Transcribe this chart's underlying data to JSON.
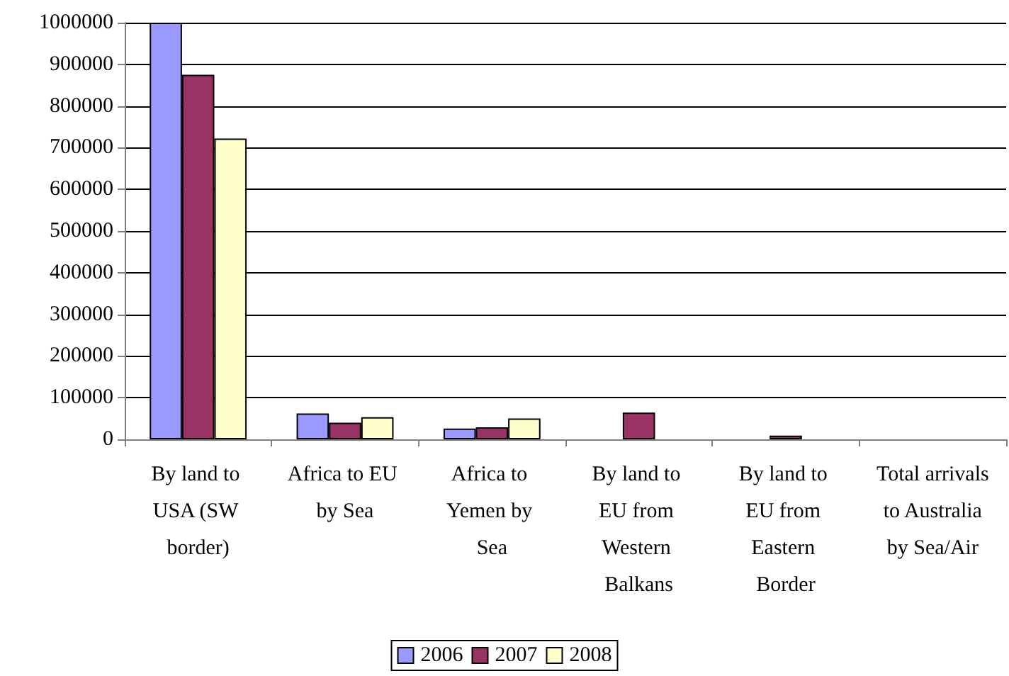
{
  "chart_data": {
    "type": "bar",
    "categories": [
      "By land to USA (SW border)",
      "Africa to EU by Sea",
      "Africa to Yemen by Sea",
      "By land to EU from Western Balkans",
      "By land to EU from Eastern Border",
      "Total arrivals to Australia by Sea/Air"
    ],
    "series": [
      {
        "name": "2006",
        "color": "#9999ff",
        "values": [
          1000000,
          62000,
          26000,
          null,
          null,
          null
        ]
      },
      {
        "name": "2007",
        "color": "#993366",
        "values": [
          875000,
          40000,
          29000,
          64000,
          9000,
          null
        ]
      },
      {
        "name": "2008",
        "color": "#ffffcc",
        "values": [
          722000,
          53000,
          50000,
          null,
          null,
          null
        ]
      }
    ],
    "ylim": [
      0,
      1000000
    ],
    "yticks": [
      0,
      100000,
      200000,
      300000,
      400000,
      500000,
      600000,
      700000,
      800000,
      900000,
      1000000
    ],
    "grid": "y",
    "legend": "bottom"
  }
}
